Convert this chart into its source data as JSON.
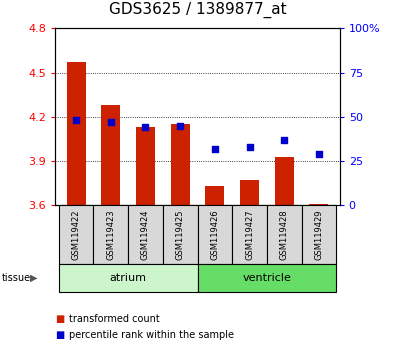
{
  "title": "GDS3625 / 1389877_at",
  "samples": [
    "GSM119422",
    "GSM119423",
    "GSM119424",
    "GSM119425",
    "GSM119426",
    "GSM119427",
    "GSM119428",
    "GSM119429"
  ],
  "transformed_counts": [
    4.57,
    4.28,
    4.13,
    4.15,
    3.73,
    3.77,
    3.93,
    3.61
  ],
  "percentile_ranks": [
    48,
    47,
    44,
    45,
    32,
    33,
    37,
    29
  ],
  "ylim_left": [
    3.6,
    4.8
  ],
  "ylim_right": [
    0,
    100
  ],
  "yticks_left": [
    3.6,
    3.9,
    4.2,
    4.5,
    4.8
  ],
  "yticks_right": [
    0,
    25,
    50,
    75,
    100
  ],
  "ytick_labels_right": [
    "0",
    "25",
    "50",
    "75",
    "100%"
  ],
  "bar_color": "#cc2200",
  "dot_color": "#0000cc",
  "bar_base": 3.6,
  "tissue_groups": [
    {
      "name": "atrium",
      "start": 0,
      "end": 3,
      "color": "#ccf5cc"
    },
    {
      "name": "ventricle",
      "start": 4,
      "end": 7,
      "color": "#66dd66"
    }
  ],
  "sample_bg_color": "#d8d8d8",
  "title_fontsize": 11,
  "tick_fontsize": 8,
  "bar_width": 0.55
}
